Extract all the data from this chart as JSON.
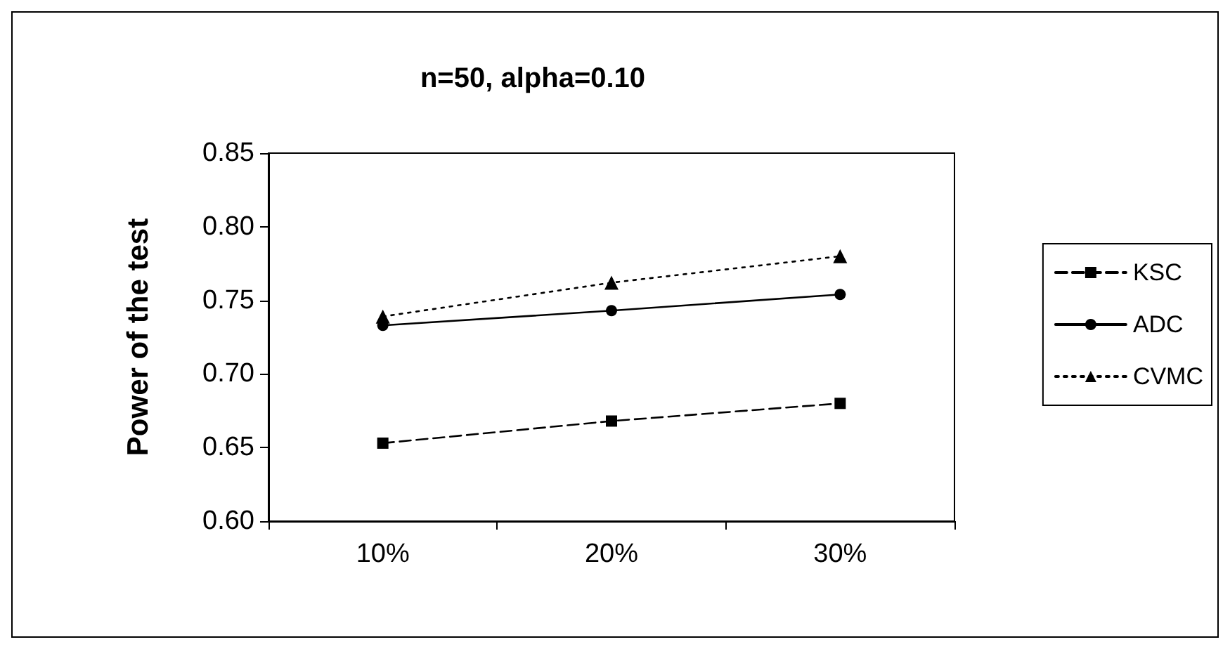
{
  "chart_data": {
    "type": "line",
    "title": "n=50, alpha=0.10",
    "ylabel": "Power of the test",
    "categories": [
      "10%",
      "20%",
      "30%"
    ],
    "series": [
      {
        "name": "KSC",
        "color": "#000000",
        "marker": "square",
        "line_style": "dashed",
        "values": [
          0.653,
          0.668,
          0.68
        ]
      },
      {
        "name": "ADC",
        "color": "#000000",
        "marker": "circle",
        "line_style": "solid",
        "values": [
          0.733,
          0.743,
          0.754
        ]
      },
      {
        "name": "CVMC",
        "color": "#000000",
        "marker": "triangle",
        "line_style": "dotted",
        "values": [
          0.739,
          0.762,
          0.78
        ]
      }
    ],
    "ylim": [
      0.6,
      0.85
    ],
    "yticks": [
      {
        "value": 0.6,
        "label": "0.60"
      },
      0.65,
      {
        "value": 0.7,
        "label": "0.70"
      },
      0.75,
      {
        "value": 0.8,
        "label": "0.80"
      },
      0.85
    ],
    "grid": false,
    "legend": "right"
  }
}
